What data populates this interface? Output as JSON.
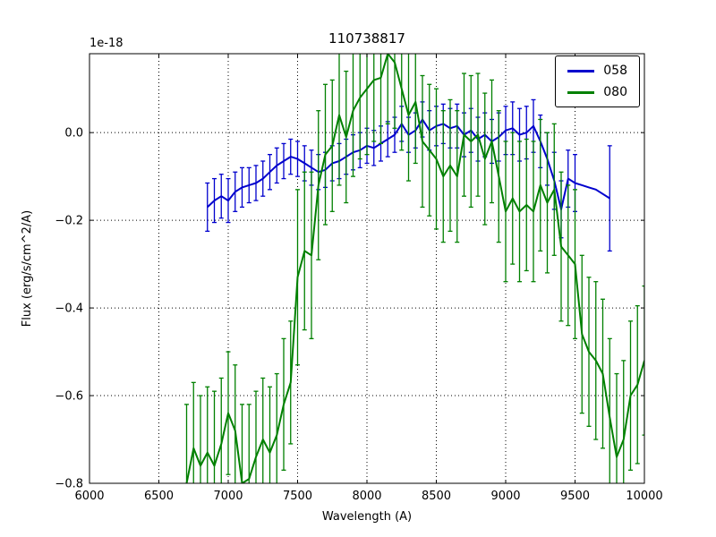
{
  "chart_data": {
    "type": "line",
    "title": "110738817",
    "xlabel": "Wavelength (A)",
    "ylabel": "Flux (erg/s/cm^2/A)",
    "offset_label": "1e-18",
    "xlim": [
      6000,
      10000
    ],
    "ylim": [
      -0.8,
      0.18
    ],
    "xticks": [
      6000,
      6500,
      7000,
      7500,
      8000,
      8500,
      9000,
      9500,
      10000
    ],
    "yticks": [
      0.0,
      -0.2,
      -0.4,
      -0.6,
      -0.8
    ],
    "grid": true,
    "legend_position": "upper right",
    "series": [
      {
        "name": "058",
        "color": "#0000cd",
        "x": [
          6850,
          6900,
          6950,
          7000,
          7050,
          7100,
          7150,
          7200,
          7250,
          7300,
          7350,
          7400,
          7450,
          7500,
          7550,
          7600,
          7650,
          7700,
          7750,
          7800,
          7850,
          7900,
          7950,
          8000,
          8050,
          8100,
          8150,
          8200,
          8250,
          8300,
          8350,
          8400,
          8450,
          8500,
          8550,
          8600,
          8650,
          8700,
          8750,
          8800,
          8850,
          8900,
          8950,
          9000,
          9050,
          9100,
          9150,
          9200,
          9250,
          9300,
          9350,
          9400,
          9450,
          9500,
          9550,
          9600,
          9650,
          9700,
          9750
        ],
        "y": [
          -0.17,
          -0.155,
          -0.145,
          -0.155,
          -0.135,
          -0.125,
          -0.12,
          -0.115,
          -0.105,
          -0.09,
          -0.075,
          -0.065,
          -0.055,
          -0.06,
          -0.07,
          -0.08,
          -0.09,
          -0.085,
          -0.07,
          -0.065,
          -0.055,
          -0.045,
          -0.04,
          -0.03,
          -0.035,
          -0.025,
          -0.015,
          -0.005,
          0.02,
          -0.005,
          0.005,
          0.03,
          0.005,
          0.015,
          0.02,
          0.01,
          0.015,
          -0.005,
          0.005,
          -0.015,
          -0.005,
          -0.02,
          -0.01,
          0.005,
          0.01,
          -0.005,
          0.0,
          0.015,
          -0.02,
          -0.06,
          -0.11,
          -0.175,
          -0.105,
          -0.115,
          -0.12,
          -0.125,
          -0.13,
          -0.14,
          -0.15
        ],
        "yerr": [
          0.055,
          0.05,
          0.05,
          0.05,
          0.045,
          0.045,
          0.04,
          0.04,
          0.04,
          0.04,
          0.04,
          0.04,
          0.04,
          0.04,
          0.04,
          0.04,
          0.04,
          0.04,
          0.04,
          0.04,
          0.04,
          0.04,
          0.04,
          0.04,
          0.04,
          0.04,
          0.04,
          0.04,
          0.04,
          0.04,
          0.04,
          0.04,
          0.045,
          0.045,
          0.045,
          0.045,
          0.05,
          0.05,
          0.05,
          0.05,
          0.05,
          0.05,
          0.055,
          0.055,
          0.06,
          0.06,
          0.06,
          0.06,
          0.06,
          0.06,
          0.065,
          0.065,
          0.065,
          0.065,
          0,
          0,
          0,
          0,
          0.12
        ]
      },
      {
        "name": "080",
        "color": "#008000",
        "x": [
          6700,
          6750,
          6800,
          6850,
          6900,
          6950,
          7000,
          7050,
          7100,
          7150,
          7200,
          7250,
          7300,
          7350,
          7400,
          7450,
          7500,
          7550,
          7600,
          7650,
          7700,
          7750,
          7800,
          7850,
          7900,
          7950,
          8000,
          8050,
          8100,
          8150,
          8200,
          8250,
          8300,
          8350,
          8400,
          8450,
          8500,
          8550,
          8600,
          8650,
          8700,
          8750,
          8800,
          8850,
          8900,
          8950,
          9000,
          9050,
          9100,
          9150,
          9200,
          9250,
          9300,
          9350,
          9400,
          9450,
          9500,
          9550,
          9600,
          9650,
          9700,
          9750,
          9800,
          9850,
          9900,
          9950,
          10000
        ],
        "y": [
          -0.8,
          -0.72,
          -0.76,
          -0.73,
          -0.76,
          -0.71,
          -0.64,
          -0.68,
          -0.8,
          -0.79,
          -0.74,
          -0.7,
          -0.73,
          -0.69,
          -0.62,
          -0.57,
          -0.33,
          -0.27,
          -0.28,
          -0.12,
          -0.05,
          -0.03,
          0.04,
          -0.01,
          0.05,
          0.08,
          0.1,
          0.12,
          0.125,
          0.18,
          0.16,
          0.1,
          0.04,
          0.07,
          -0.02,
          -0.04,
          -0.06,
          -0.1,
          -0.075,
          -0.1,
          -0.005,
          -0.02,
          -0.005,
          -0.06,
          -0.02,
          -0.1,
          -0.18,
          -0.15,
          -0.18,
          -0.165,
          -0.18,
          -0.12,
          -0.16,
          -0.13,
          -0.26,
          -0.28,
          -0.3,
          -0.46,
          -0.5,
          -0.52,
          -0.55,
          -0.65,
          -0.74,
          -0.7,
          -0.6,
          -0.575,
          -0.52
        ],
        "yerr": [
          0.18,
          0.15,
          0.16,
          0.15,
          0.17,
          0.15,
          0.14,
          0.15,
          0.18,
          0.17,
          0.15,
          0.14,
          0.15,
          0.14,
          0.15,
          0.14,
          0.2,
          0.18,
          0.19,
          0.17,
          0.16,
          0.15,
          0.16,
          0.15,
          0.15,
          0.14,
          0.15,
          0.14,
          0.15,
          0.16,
          0.15,
          0.14,
          0.15,
          0.14,
          0.15,
          0.15,
          0.16,
          0.15,
          0.15,
          0.15,
          0.14,
          0.15,
          0.14,
          0.15,
          0.14,
          0.15,
          0.16,
          0.15,
          0.16,
          0.15,
          0.16,
          0.15,
          0.16,
          0.15,
          0.17,
          0.16,
          0.17,
          0.18,
          0.17,
          0.18,
          0.17,
          0.18,
          0.19,
          0.18,
          0.17,
          0.18,
          0.17
        ]
      }
    ]
  }
}
